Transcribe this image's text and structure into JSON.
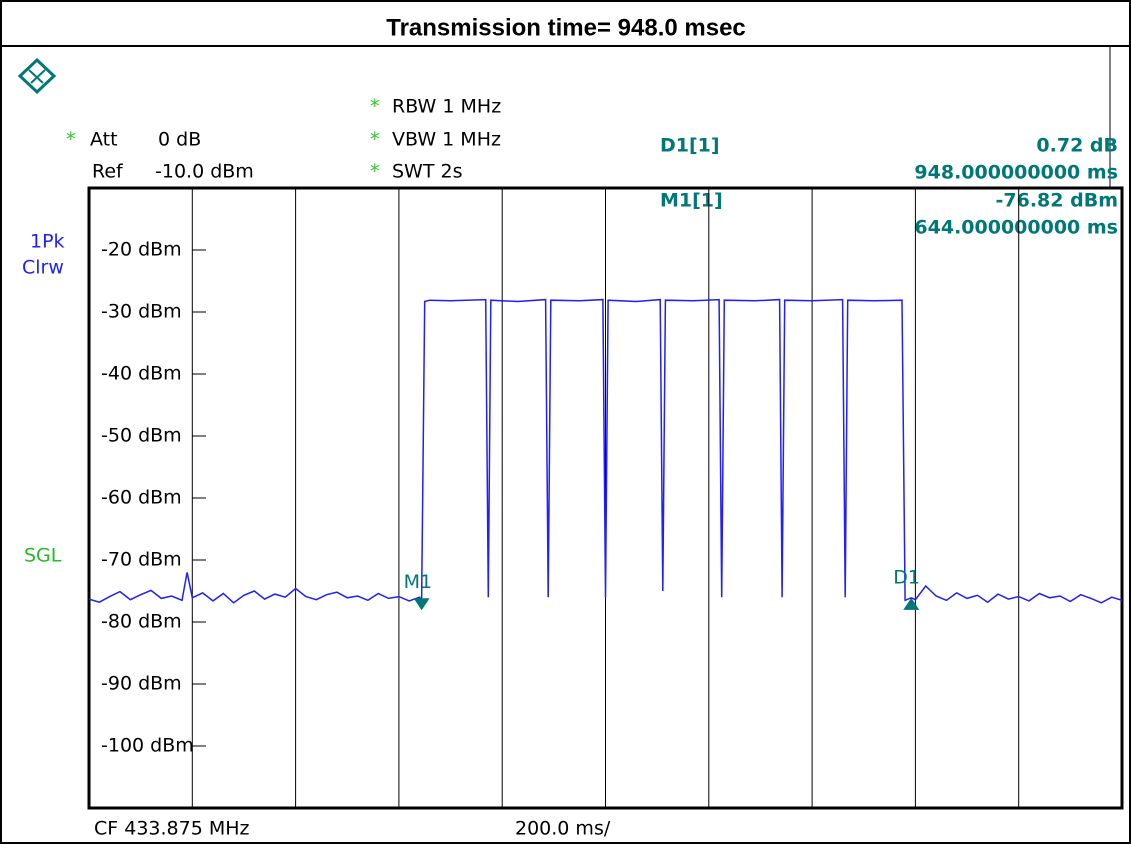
{
  "title": "Transmission time= 948.0 msec",
  "settings": {
    "att_star": "*",
    "att": "Att",
    "att_value": "0 dB",
    "ref": "Ref",
    "ref_value": "-10.0 dBm",
    "rbw_star": "*",
    "rbw": "RBW 1 MHz",
    "vbw_star": "*",
    "vbw": "VBW 1 MHz",
    "swt_star": "*",
    "swt": "SWT 2s"
  },
  "readout": {
    "d1": "D1[1]",
    "d1_level": "0.72 dB",
    "d1_time": "948.000000000 ms",
    "m1": "M1[1]",
    "m1_level": "-76.82 dBm",
    "m1_time": "644.000000000 ms"
  },
  "trace_labels": [
    "1Pk",
    "Clrw"
  ],
  "sgl": "SGL",
  "footer": {
    "cf": "CF 433.875 MHz",
    "span": "200.0 ms/"
  },
  "chart_data": {
    "type": "line",
    "x": [
      0,
      20,
      40,
      60,
      80,
      100,
      120,
      140,
      160,
      180,
      190,
      200,
      220,
      240,
      260,
      280,
      300,
      320,
      340,
      360,
      380,
      400,
      420,
      440,
      460,
      480,
      500,
      520,
      540,
      560,
      580,
      600,
      620,
      640,
      644,
      650,
      660,
      700,
      768,
      773,
      778,
      830,
      884,
      889,
      894,
      950,
      995,
      1000,
      1005,
      1060,
      1106,
      1111,
      1116,
      1170,
      1220,
      1225,
      1230,
      1290,
      1337,
      1342,
      1347,
      1400,
      1459,
      1464,
      1469,
      1520,
      1574,
      1580,
      1592,
      1600,
      1620,
      1640,
      1660,
      1680,
      1700,
      1720,
      1740,
      1760,
      1780,
      1800,
      1820,
      1840,
      1860,
      1880,
      1900,
      1920,
      1940,
      1960,
      1980,
      2000
    ],
    "series": [
      {
        "color": "#1f1fff",
        "values": [
          -76.3,
          -76.8,
          -75.9,
          -75.1,
          -76.4,
          -75.6,
          -74.9,
          -76.2,
          -75.8,
          -76.5,
          -72.0,
          -76.1,
          -75.3,
          -76.6,
          -75.4,
          -76.9,
          -75.7,
          -75.0,
          -76.3,
          -75.5,
          -76.0,
          -74.6,
          -75.9,
          -76.4,
          -75.6,
          -75.2,
          -76.1,
          -75.8,
          -76.5,
          -75.4,
          -76.2,
          -75.9,
          -76.6,
          -76.0,
          -76.82,
          -28.3,
          -28.1,
          -28.2,
          -28.0,
          -76.0,
          -28.1,
          -28.3,
          -28.0,
          -76.0,
          -28.1,
          -28.2,
          -28.0,
          -76.0,
          -28.1,
          -28.3,
          -28.0,
          -75.0,
          -28.1,
          -28.2,
          -28.0,
          -76.0,
          -28.1,
          -28.2,
          -28.0,
          -76.0,
          -28.1,
          -28.2,
          -28.0,
          -76.0,
          -28.1,
          -28.2,
          -28.1,
          -76.5,
          -76.1,
          -76.4,
          -74.2,
          -75.8,
          -76.5,
          -75.3,
          -76.2,
          -75.7,
          -76.8,
          -75.5,
          -76.3,
          -75.9,
          -76.6,
          -75.4,
          -76.1,
          -75.8,
          -76.7,
          -75.6,
          -76.2,
          -76.9,
          -76.0,
          -76.5
        ]
      }
    ],
    "xlim": [
      0,
      2000
    ],
    "ylim": [
      -110,
      -10
    ],
    "xticks": [
      200,
      400,
      600,
      800,
      1000,
      1200,
      1400,
      1600,
      1800
    ],
    "yticks": [
      {
        "value": -20,
        "label": "-20 dBm"
      },
      {
        "value": -30,
        "label": "-30 dBm"
      },
      {
        "value": -40,
        "label": "-40 dBm"
      },
      {
        "value": -50,
        "label": "-50 dBm"
      },
      {
        "value": -60,
        "label": "-60 dBm"
      },
      {
        "value": -70,
        "label": "-70 dBm"
      },
      {
        "value": -80,
        "label": "-80 dBm"
      },
      {
        "value": -90,
        "label": "-90 dBm"
      },
      {
        "value": -100,
        "label": "-100 dBm"
      }
    ],
    "marker_color": "#007878",
    "markers": [
      {
        "label": "M1",
        "x": 644,
        "y": -76.82,
        "direction": "down"
      },
      {
        "label": "D1",
        "x": 1592,
        "y": -76.1,
        "direction": "up"
      }
    ]
  }
}
